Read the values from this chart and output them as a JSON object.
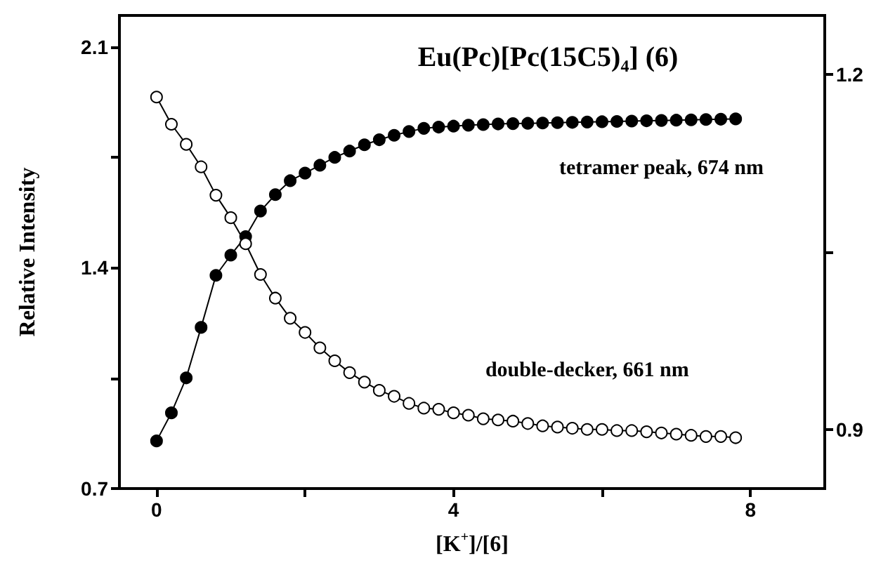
{
  "chart_data": {
    "type": "line",
    "title": "Eu(Pc)[Pc(15C5)$_{4}$] (6)",
    "xlabel": "[K$^{+}$]/[6]",
    "ylabel": "Relative Intensity",
    "x": [
      0,
      0.2,
      0.4,
      0.6,
      0.8,
      1,
      1.2,
      1.4,
      1.6,
      1.8,
      2,
      2.2,
      2.4,
      2.6,
      2.8,
      3,
      3.2,
      3.4,
      3.6,
      3.8,
      4,
      4.2,
      4.4,
      4.6,
      4.8,
      5,
      5.2,
      5.4,
      5.6,
      5.8,
      6,
      6.2,
      6.4,
      6.6,
      6.8,
      7,
      7.2,
      7.4,
      7.6,
      7.8
    ],
    "series": [
      {
        "name": "tetramer peak, 674 nm",
        "color": "#000000",
        "values": [
          0.851,
          0.94,
          1.051,
          1.211,
          1.376,
          1.44,
          1.499,
          1.58,
          1.632,
          1.676,
          1.7,
          1.725,
          1.75,
          1.77,
          1.79,
          1.806,
          1.82,
          1.832,
          1.842,
          1.846,
          1.849,
          1.852,
          1.854,
          1.856,
          1.857,
          1.858,
          1.859,
          1.86,
          1.861,
          1.862,
          1.863,
          1.864,
          1.865,
          1.866,
          1.867,
          1.868,
          1.869,
          1.87,
          1.871,
          1.872
        ]
      },
      {
        "name": "double-decker, 661 nm",
        "color": "#000000",
        "axis": "y2",
        "values": [
          1.181,
          1.158,
          1.141,
          1.122,
          1.098,
          1.079,
          1.057,
          1.031,
          1.011,
          0.994,
          0.982,
          0.969,
          0.958,
          0.948,
          0.94,
          0.933,
          0.928,
          0.922,
          0.918,
          0.917,
          0.914,
          0.912,
          0.909,
          0.908,
          0.907,
          0.905,
          0.903,
          0.902,
          0.901,
          0.9,
          0.9,
          0.899,
          0.899,
          0.898,
          0.897,
          0.896,
          0.895,
          0.894,
          0.894,
          0.893
        ]
      }
    ],
    "xlim": [
      -0.5,
      9
    ],
    "xticks": [
      0,
      {
        "value": 2,
        "label": null
      },
      4,
      {
        "value": 6,
        "label": null
      },
      8
    ],
    "ylim": [
      0.7,
      2.2
    ],
    "yticks": [
      0.7,
      {
        "value": 1.05,
        "label": null
      },
      1.4,
      {
        "value": 1.75,
        "label": null
      },
      2.1
    ],
    "y2lim": [
      0.85,
      1.25
    ],
    "y2ticks": [
      0.9,
      {
        "value": 1.05,
        "label": null
      },
      1.2
    ],
    "marker": "circle",
    "line_style": "solid",
    "legend": false,
    "grid": false
  }
}
